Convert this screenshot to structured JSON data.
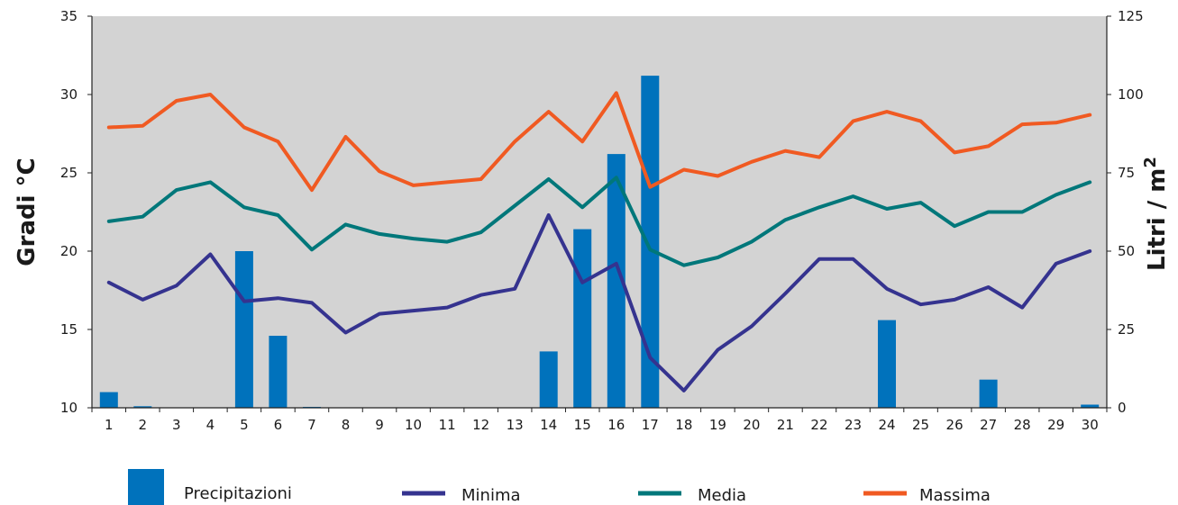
{
  "chart_data": {
    "type": "bar+line",
    "categories": [
      "1",
      "2",
      "3",
      "4",
      "5",
      "6",
      "7",
      "8",
      "9",
      "10",
      "11",
      "12",
      "13",
      "14",
      "15",
      "16",
      "17",
      "18",
      "19",
      "20",
      "21",
      "22",
      "23",
      "24",
      "25",
      "26",
      "27",
      "28",
      "29",
      "30"
    ],
    "ylabel_left": "Gradi °C",
    "ylabel_right_base": "Litri / m",
    "ylabel_right_sup": "2",
    "ylim_left": [
      10,
      35
    ],
    "yticks_left": [
      10,
      15,
      20,
      25,
      30,
      35
    ],
    "ylim_right": [
      0,
      125
    ],
    "yticks_right": [
      0,
      25,
      50,
      75,
      100,
      125
    ],
    "grid": false,
    "legend_position": "bottom",
    "plot_background": "#d3d3d3",
    "bars": {
      "name": "Precipitazioni",
      "axis": "right",
      "color": "#0072bc",
      "values": [
        5,
        0.5,
        0,
        0,
        50,
        23,
        0.3,
        0,
        0,
        0,
        0,
        0,
        0,
        18,
        57,
        81,
        106,
        0,
        0,
        0,
        0,
        0,
        0,
        28,
        0,
        0,
        9,
        0,
        0,
        1
      ]
    },
    "series": [
      {
        "name": "Minima",
        "axis": "left",
        "color": "#35338f",
        "values": [
          18,
          16.9,
          17.8,
          19.8,
          16.8,
          17,
          16.7,
          14.8,
          16,
          16.2,
          16.4,
          17.2,
          17.6,
          22.3,
          18,
          19.2,
          13.2,
          11.1,
          13.7,
          15.2,
          17.3,
          19.5,
          19.5,
          17.6,
          16.6,
          16.9,
          17.7,
          16.4,
          19.2,
          20
        ]
      },
      {
        "name": "Media",
        "axis": "left",
        "color": "#00777a",
        "values": [
          21.9,
          22.2,
          23.9,
          24.4,
          22.8,
          22.3,
          20.1,
          21.7,
          21.1,
          20.8,
          20.6,
          21.2,
          22.9,
          24.6,
          22.8,
          24.7,
          20.1,
          19.1,
          19.6,
          20.6,
          22,
          22.8,
          23.5,
          22.7,
          23.1,
          21.6,
          22.5,
          22.5,
          23.6,
          24.4
        ]
      },
      {
        "name": "Massima",
        "axis": "left",
        "color": "#f05a22",
        "values": [
          27.9,
          28,
          29.6,
          30,
          27.9,
          27,
          23.9,
          27.3,
          25.1,
          24.2,
          24.4,
          24.6,
          27,
          28.9,
          27,
          30.1,
          24.1,
          25.2,
          24.8,
          25.7,
          26.4,
          26,
          28.3,
          28.9,
          28.3,
          26.3,
          26.7,
          28.1,
          28.2,
          28.7
        ]
      }
    ]
  }
}
